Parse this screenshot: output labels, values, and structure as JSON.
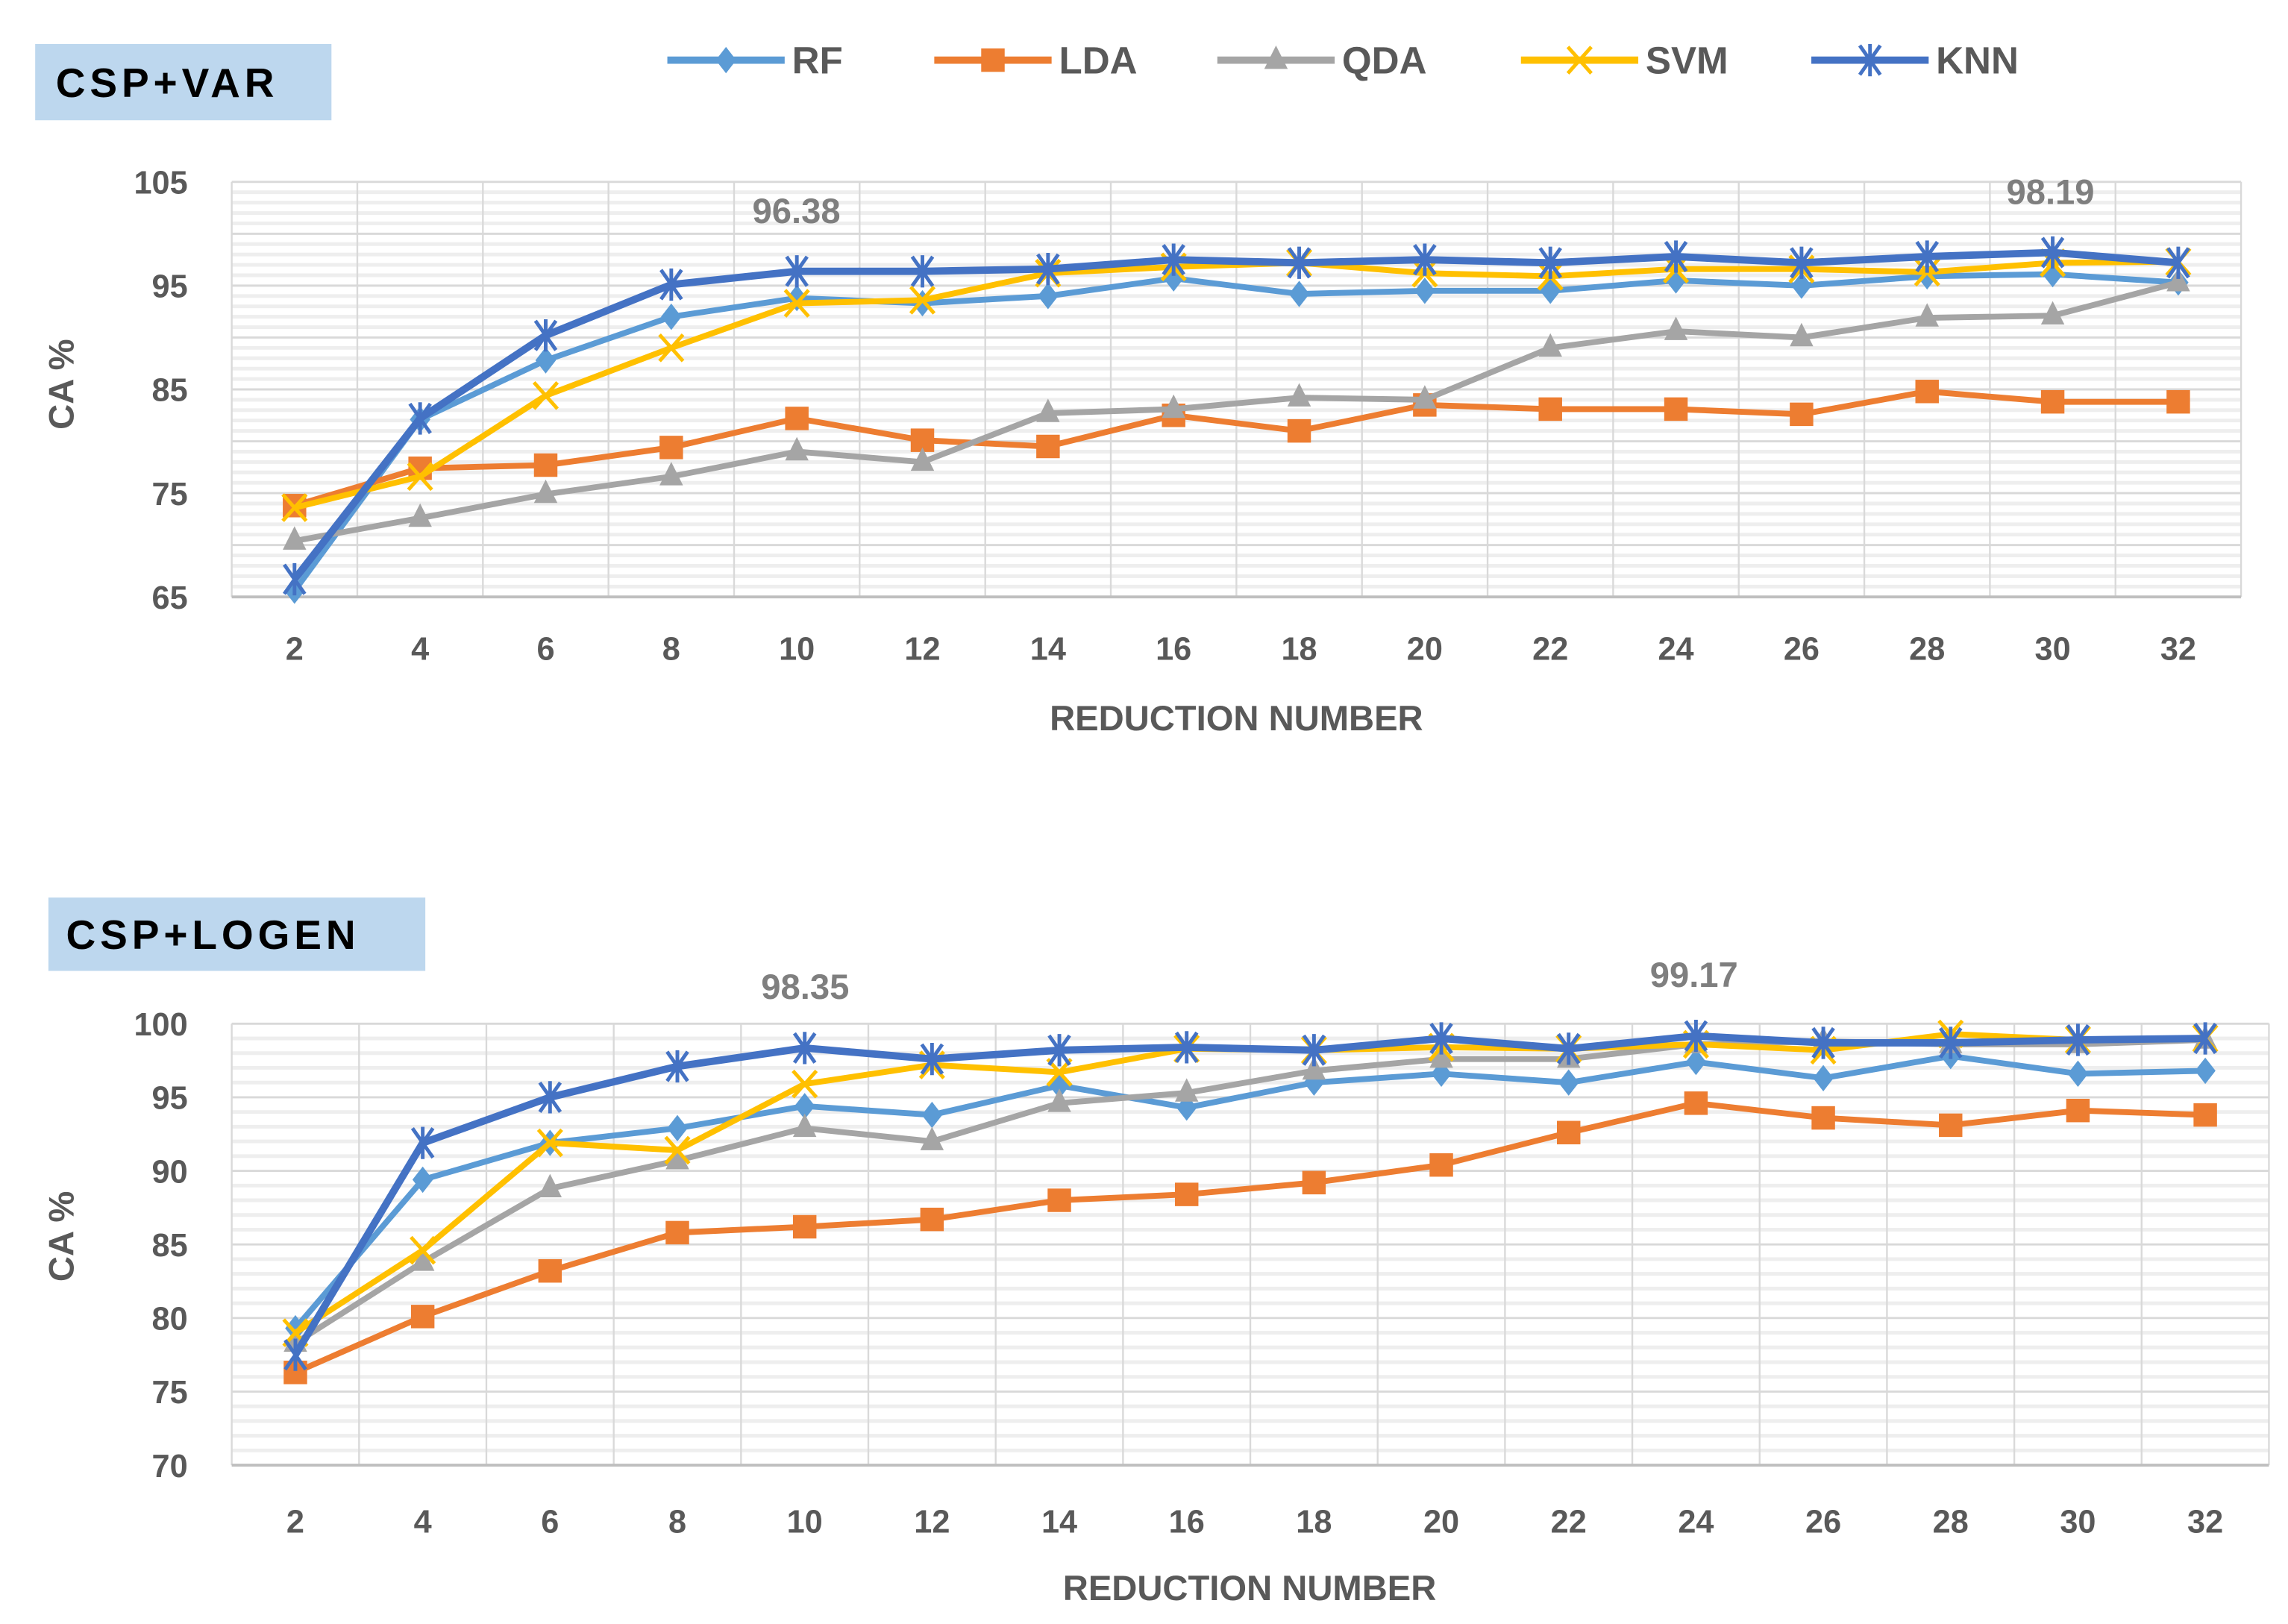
{
  "legend": [
    "RF",
    "LDA",
    "QDA",
    "SVM",
    "KNN"
  ],
  "colors": {
    "RF": "#5b9bd5",
    "LDA": "#ed7d31",
    "QDA": "#a5a5a5",
    "SVM": "#ffc000",
    "KNN": "#4472c4",
    "title_bg": "#bdd7ee"
  },
  "chart_data": [
    {
      "type": "line",
      "title": "CSP+VAR",
      "xlabel": "REDUCTION NUMBER",
      "ylabel": "CA %",
      "ylim": [
        65,
        105
      ],
      "yticks": [
        65,
        75,
        85,
        95,
        105
      ],
      "grid": true,
      "categories": [
        "2",
        "4",
        "6",
        "8",
        "10",
        "12",
        "14",
        "16",
        "18",
        "20",
        "22",
        "24",
        "26",
        "28",
        "30",
        "32"
      ],
      "annotations": [
        {
          "text": "96.38",
          "x": "10"
        },
        {
          "text": "98.19",
          "x": "30"
        }
      ],
      "series": [
        {
          "name": "RF",
          "values": [
            65.6,
            82.1,
            87.8,
            92.0,
            93.8,
            93.3,
            94.0,
            95.7,
            94.2,
            94.5,
            94.5,
            95.5,
            95.0,
            95.9,
            96.1,
            95.3
          ]
        },
        {
          "name": "LDA",
          "values": [
            73.8,
            77.4,
            77.7,
            79.4,
            82.2,
            80.1,
            79.5,
            82.5,
            81.0,
            83.5,
            83.1,
            83.1,
            82.6,
            84.8,
            83.8,
            83.8
          ]
        },
        {
          "name": "QDA",
          "values": [
            70.4,
            72.6,
            74.9,
            76.6,
            79.0,
            78.0,
            82.7,
            83.1,
            84.2,
            84.0,
            89.0,
            90.6,
            90.0,
            91.9,
            92.1,
            95.3
          ]
        },
        {
          "name": "SVM",
          "values": [
            73.6,
            76.6,
            84.4,
            89.0,
            93.3,
            93.6,
            96.2,
            96.8,
            97.2,
            96.2,
            95.9,
            96.6,
            96.6,
            96.3,
            97.2,
            97.3
          ]
        },
        {
          "name": "KNN",
          "values": [
            66.7,
            82.2,
            90.2,
            95.1,
            96.38,
            96.38,
            96.6,
            97.5,
            97.2,
            97.5,
            97.2,
            97.8,
            97.2,
            97.8,
            98.19,
            97.2
          ]
        }
      ]
    },
    {
      "type": "line",
      "title": "CSP+LOGEN",
      "xlabel": "REDUCTION NUMBER",
      "ylabel": "CA %",
      "ylim": [
        70,
        100
      ],
      "yticks": [
        70,
        75,
        80,
        85,
        90,
        95,
        100
      ],
      "grid": true,
      "categories": [
        "2",
        "4",
        "6",
        "8",
        "10",
        "12",
        "14",
        "16",
        "18",
        "20",
        "22",
        "24",
        "26",
        "28",
        "30",
        "32"
      ],
      "annotations": [
        {
          "text": "98.35",
          "x": "10"
        },
        {
          "text": "99.17",
          "x": "24"
        }
      ],
      "series": [
        {
          "name": "RF",
          "values": [
            79.3,
            89.4,
            91.9,
            92.9,
            94.4,
            93.8,
            95.8,
            94.3,
            96.0,
            96.6,
            96.0,
            97.4,
            96.3,
            97.8,
            96.6,
            96.8
          ]
        },
        {
          "name": "LDA",
          "values": [
            76.3,
            80.1,
            83.2,
            85.8,
            86.2,
            86.7,
            88.0,
            88.4,
            89.2,
            90.4,
            92.6,
            94.6,
            93.6,
            93.1,
            94.1,
            93.8
          ]
        },
        {
          "name": "QDA",
          "values": [
            78.3,
            83.8,
            88.8,
            90.7,
            92.9,
            92.0,
            94.6,
            95.3,
            96.8,
            97.6,
            97.6,
            98.6,
            98.8,
            98.6,
            98.6,
            98.9
          ]
        },
        {
          "name": "SVM",
          "values": [
            79.0,
            84.6,
            91.9,
            91.4,
            95.9,
            97.2,
            96.7,
            98.3,
            98.2,
            98.4,
            98.3,
            98.6,
            98.2,
            99.3,
            98.9,
            99.0
          ]
        },
        {
          "name": "KNN",
          "values": [
            77.5,
            91.9,
            95.0,
            97.1,
            98.35,
            97.6,
            98.2,
            98.4,
            98.2,
            99.0,
            98.3,
            99.17,
            98.7,
            98.7,
            98.9,
            99.0
          ]
        }
      ]
    }
  ]
}
